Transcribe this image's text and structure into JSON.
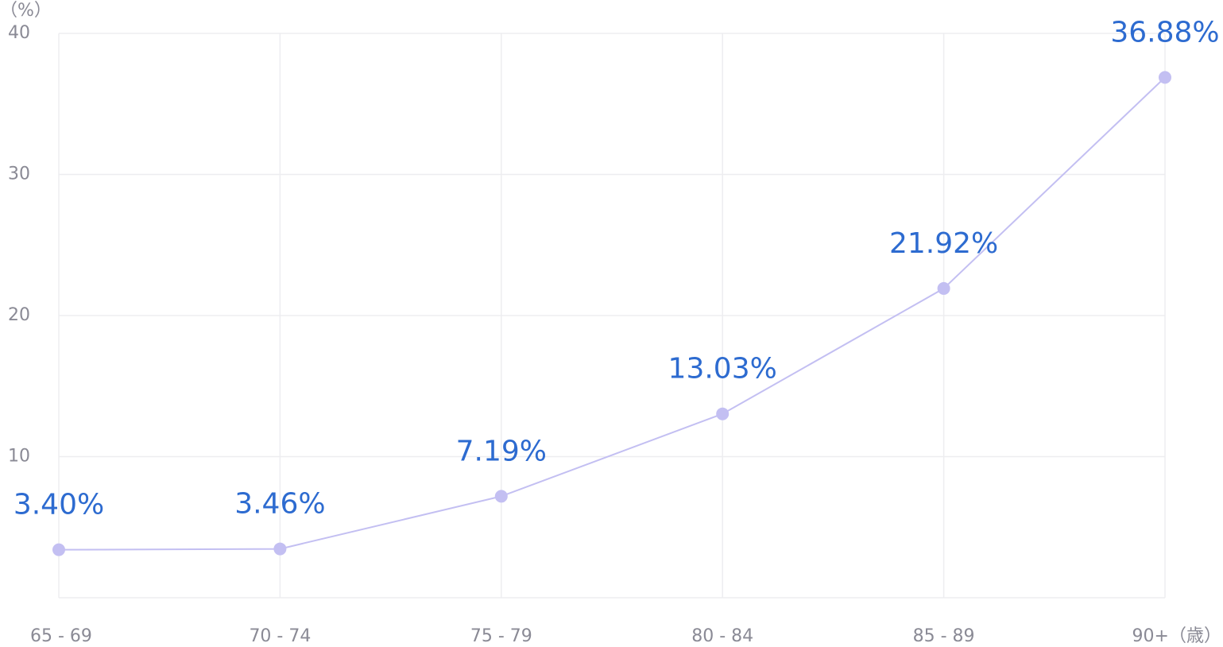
{
  "chart_data": {
    "type": "line",
    "y_label": "（%）",
    "x_label": "（歳）",
    "categories": [
      "65 - 69",
      "70 - 74",
      "75 - 79",
      "80 - 84",
      "85 - 89",
      "90+"
    ],
    "series": [
      {
        "color": "#c3bff2",
        "label_color": "#2d6bd0",
        "values": [
          3.4,
          3.46,
          7.19,
          13.03,
          21.92,
          36.88
        ],
        "value_labels": [
          "3.40%",
          "3.46%",
          "7.19%",
          "13.03%",
          "21.92%",
          "36.88%"
        ]
      }
    ],
    "ylim": [
      0,
      40
    ],
    "yticks": [
      10,
      20,
      30,
      40
    ],
    "grid": true
  }
}
